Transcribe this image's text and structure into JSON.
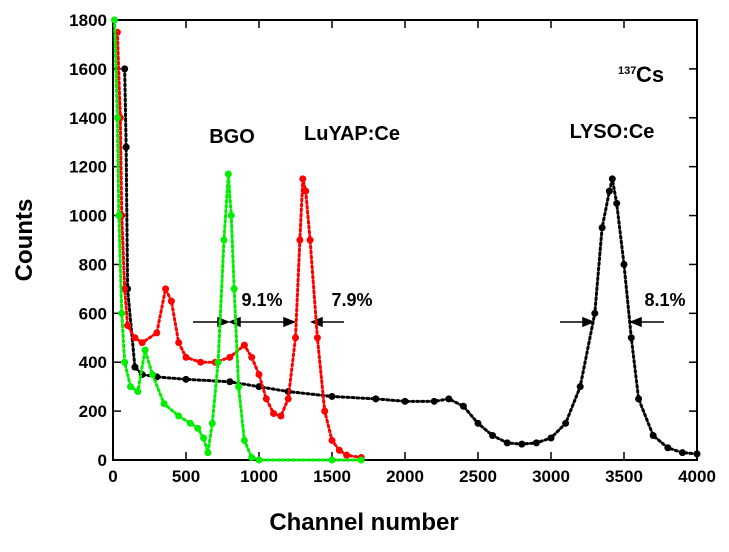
{
  "chart_data": {
    "type": "scatter",
    "xlabel": "Channel number",
    "ylabel": "Counts",
    "source_element": "Cs",
    "source_mass": "137",
    "xlim": [
      0,
      4000
    ],
    "xticks": [
      0,
      500,
      1000,
      1500,
      2000,
      2500,
      3000,
      3500,
      4000
    ],
    "ylim": [
      0,
      1800
    ],
    "yticks": [
      0,
      200,
      400,
      600,
      800,
      1000,
      1200,
      1400,
      1600,
      1800
    ],
    "annotations": [
      "9.1%",
      "7.9%",
      "8.1%"
    ],
    "series": [
      {
        "name": "LYSO:Ce",
        "color": "#000000",
        "x": [
          80,
          90,
          100,
          150,
          200,
          300,
          500,
          800,
          1000,
          1200,
          1500,
          1800,
          2000,
          2200,
          2300,
          2400,
          2500,
          2600,
          2700,
          2800,
          2900,
          3000,
          3100,
          3200,
          3300,
          3350,
          3400,
          3420,
          3450,
          3500,
          3550,
          3600,
          3700,
          3800,
          3900,
          4000
        ],
        "values": [
          1600,
          1280,
          700,
          380,
          350,
          340,
          330,
          320,
          300,
          280,
          260,
          250,
          240,
          240,
          250,
          220,
          150,
          100,
          70,
          65,
          70,
          90,
          150,
          300,
          600,
          950,
          1100,
          1150,
          1050,
          800,
          500,
          250,
          100,
          50,
          30,
          25
        ]
      },
      {
        "name": "LuYAP:Ce",
        "color": "#ff0000",
        "x": [
          30,
          50,
          60,
          80,
          100,
          150,
          200,
          300,
          360,
          400,
          450,
          500,
          600,
          700,
          800,
          900,
          950,
          1000,
          1050,
          1100,
          1150,
          1200,
          1250,
          1280,
          1300,
          1320,
          1350,
          1400,
          1450,
          1500,
          1550,
          1600,
          1700
        ],
        "values": [
          1750,
          1400,
          1000,
          700,
          550,
          500,
          480,
          520,
          700,
          650,
          480,
          420,
          400,
          400,
          420,
          470,
          420,
          350,
          250,
          190,
          180,
          250,
          500,
          900,
          1150,
          1100,
          900,
          500,
          200,
          80,
          40,
          20,
          10
        ]
      },
      {
        "name": "BGO",
        "color": "#00ee00",
        "x": [
          10,
          30,
          40,
          60,
          80,
          120,
          170,
          220,
          270,
          350,
          450,
          530,
          580,
          620,
          650,
          680,
          720,
          760,
          790,
          810,
          830,
          860,
          900,
          950,
          1000,
          1500,
          1700
        ],
        "values": [
          1800,
          1400,
          1000,
          600,
          400,
          300,
          280,
          450,
          350,
          230,
          180,
          150,
          130,
          90,
          30,
          150,
          400,
          900,
          1170,
          1000,
          700,
          300,
          80,
          10,
          0,
          0,
          0
        ]
      }
    ]
  }
}
